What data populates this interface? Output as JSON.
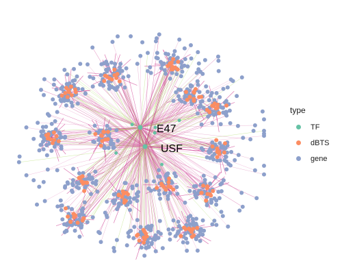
{
  "legend": {
    "title": "type",
    "items": [
      {
        "label": "TF",
        "color": "#66c2a5"
      },
      {
        "label": "dBTS",
        "color": "#fc8d62"
      },
      {
        "label": "gene",
        "color": "#8da0cb"
      }
    ]
  },
  "hubs": [
    {
      "label": "E47"
    },
    {
      "label": "USF"
    }
  ],
  "edge_colors": [
    "#e78ac3",
    "#a6d854",
    "#c51b7d",
    "#d97fb5"
  ]
}
